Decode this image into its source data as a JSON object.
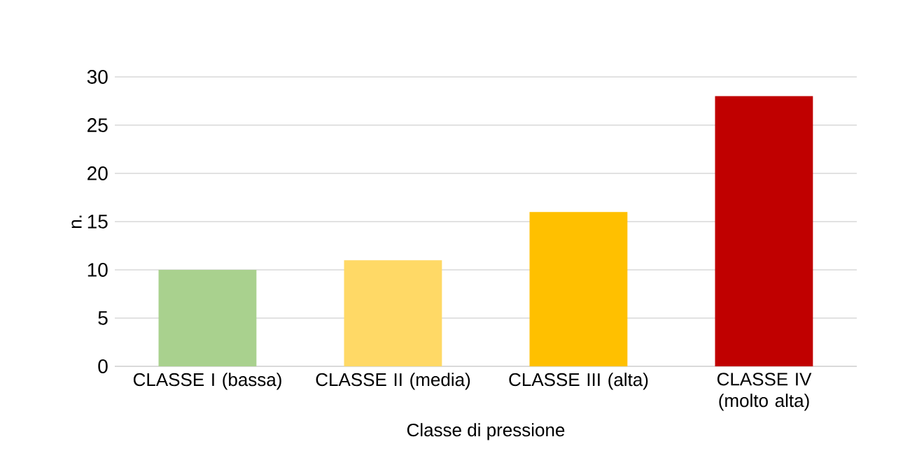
{
  "chart_data": {
    "type": "bar",
    "xlabel": "Classe di pressione",
    "ylabel": "n.",
    "categories": [
      "CLASSE I (bassa)",
      "CLASSE II (media)",
      "CLASSE III (alta)",
      "CLASSE IV (molto alta)"
    ],
    "values": [
      10,
      11,
      16,
      28
    ],
    "colors": [
      "#a9d18e",
      "#ffd966",
      "#ffc000",
      "#c00000"
    ],
    "ylim": [
      0,
      30
    ],
    "yticks": [
      0,
      5,
      10,
      15,
      20,
      25,
      30
    ],
    "grid": "y"
  }
}
